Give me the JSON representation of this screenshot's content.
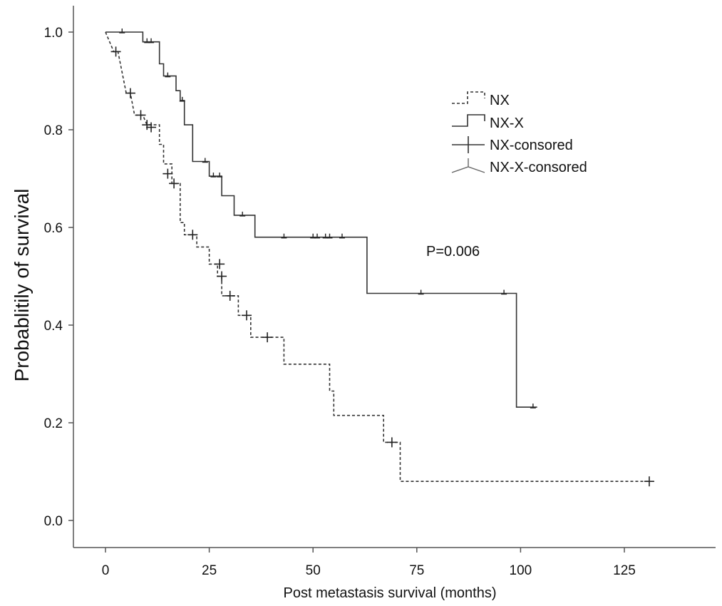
{
  "chart_data": {
    "type": "line",
    "subtype": "kaplan-meier",
    "xlabel": "Post metastasis survival (months)",
    "ylabel": "Probablitily of survival",
    "xlim": [
      -8,
      147
    ],
    "ylim": [
      -0.06,
      1.06
    ],
    "x_ticks": [
      0,
      25,
      50,
      75,
      100,
      125
    ],
    "y_ticks": [
      0.0,
      0.2,
      0.4,
      0.6,
      0.8,
      1.0
    ],
    "y_tick_labels": [
      "0.0",
      "0.2",
      "0.4",
      "0.6",
      "0.8",
      "1.0"
    ],
    "grid": false,
    "legend_position": "top-right",
    "legend": [
      {
        "label": "NX",
        "style": "dashed-step"
      },
      {
        "label": "NX-X",
        "style": "solid-step"
      },
      {
        "label": "NX-consored",
        "style": "plus-marker"
      },
      {
        "label": "NX-X-consored",
        "style": "tick-marker"
      }
    ],
    "annotation": "P=0.006",
    "series": [
      {
        "name": "NX",
        "line": "dashed",
        "color": "#333333",
        "steps": [
          [
            0,
            1.0
          ],
          [
            2,
            0.96
          ],
          [
            3,
            0.96
          ],
          [
            5,
            0.875
          ],
          [
            6,
            0.875
          ],
          [
            7,
            0.83
          ],
          [
            9,
            0.83
          ],
          [
            10,
            0.81
          ],
          [
            13,
            0.81
          ],
          [
            13,
            0.77
          ],
          [
            14,
            0.77
          ],
          [
            14,
            0.73
          ],
          [
            16,
            0.73
          ],
          [
            16,
            0.69
          ],
          [
            18,
            0.69
          ],
          [
            18,
            0.61
          ],
          [
            19,
            0.61
          ],
          [
            19,
            0.585
          ],
          [
            22,
            0.585
          ],
          [
            22,
            0.56
          ],
          [
            25,
            0.56
          ],
          [
            25,
            0.525
          ],
          [
            27,
            0.525
          ],
          [
            27,
            0.5
          ],
          [
            28,
            0.5
          ],
          [
            28,
            0.46
          ],
          [
            32,
            0.46
          ],
          [
            32,
            0.42
          ],
          [
            35,
            0.42
          ],
          [
            35,
            0.375
          ],
          [
            43,
            0.375
          ],
          [
            43,
            0.32
          ],
          [
            54,
            0.32
          ],
          [
            54,
            0.265
          ],
          [
            55,
            0.265
          ],
          [
            55,
            0.215
          ],
          [
            67,
            0.215
          ],
          [
            67,
            0.16
          ],
          [
            71,
            0.16
          ],
          [
            71,
            0.08
          ],
          [
            131,
            0.08
          ]
        ],
        "censored": [
          [
            2.5,
            0.96
          ],
          [
            6,
            0.875
          ],
          [
            8.5,
            0.83
          ],
          [
            10,
            0.81
          ],
          [
            11,
            0.805
          ],
          [
            15,
            0.71
          ],
          [
            16.5,
            0.69
          ],
          [
            21,
            0.585
          ],
          [
            27.5,
            0.525
          ],
          [
            28,
            0.5
          ],
          [
            30,
            0.46
          ],
          [
            34,
            0.42
          ],
          [
            39,
            0.375
          ],
          [
            69,
            0.16
          ],
          [
            131,
            0.08
          ]
        ]
      },
      {
        "name": "NX-X",
        "line": "solid",
        "color": "#333333",
        "steps": [
          [
            0,
            1.0
          ],
          [
            9,
            1.0
          ],
          [
            9,
            0.98
          ],
          [
            13,
            0.98
          ],
          [
            13,
            0.935
          ],
          [
            14,
            0.935
          ],
          [
            14,
            0.91
          ],
          [
            17,
            0.91
          ],
          [
            17,
            0.88
          ],
          [
            18,
            0.88
          ],
          [
            18,
            0.86
          ],
          [
            19,
            0.86
          ],
          [
            19,
            0.81
          ],
          [
            21,
            0.81
          ],
          [
            21,
            0.735
          ],
          [
            25,
            0.735
          ],
          [
            25,
            0.705
          ],
          [
            28,
            0.705
          ],
          [
            28,
            0.665
          ],
          [
            31,
            0.665
          ],
          [
            31,
            0.625
          ],
          [
            36,
            0.625
          ],
          [
            36,
            0.58
          ],
          [
            63,
            0.58
          ],
          [
            63,
            0.465
          ],
          [
            99,
            0.465
          ],
          [
            99,
            0.232
          ],
          [
            104,
            0.232
          ]
        ],
        "censored": [
          [
            4,
            1.0
          ],
          [
            10,
            0.98
          ],
          [
            11,
            0.98
          ],
          [
            15,
            0.91
          ],
          [
            18.5,
            0.86
          ],
          [
            24,
            0.735
          ],
          [
            26,
            0.705
          ],
          [
            27.5,
            0.705
          ],
          [
            33,
            0.625
          ],
          [
            43,
            0.58
          ],
          [
            50,
            0.58
          ],
          [
            51,
            0.58
          ],
          [
            53,
            0.58
          ],
          [
            54,
            0.58
          ],
          [
            57,
            0.58
          ],
          [
            76,
            0.465
          ],
          [
            96,
            0.465
          ],
          [
            103,
            0.232
          ]
        ]
      }
    ]
  }
}
